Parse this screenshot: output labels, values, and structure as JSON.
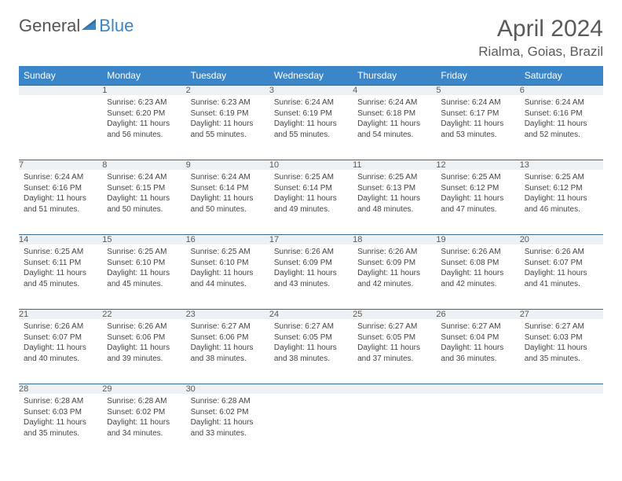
{
  "brand": {
    "part1": "General",
    "part2": "Blue"
  },
  "title": "April 2024",
  "location": "Rialma, Goias, Brazil",
  "colors": {
    "header_bg": "#3a86c8",
    "header_text": "#ffffff",
    "daynum_bg": "#eef1f3",
    "border": "#3a6a8f",
    "title_text": "#5a5a5a",
    "body_text": "#444444",
    "page_bg": "#ffffff"
  },
  "typography": {
    "title_fontsize": 30,
    "location_fontsize": 17,
    "weekday_fontsize": 12,
    "daynum_fontsize": 11,
    "cell_fontsize": 10
  },
  "weekdays": [
    "Sunday",
    "Monday",
    "Tuesday",
    "Wednesday",
    "Thursday",
    "Friday",
    "Saturday"
  ],
  "weeks": [
    [
      null,
      {
        "n": "1",
        "sunrise": "6:23 AM",
        "sunset": "6:20 PM",
        "daylight": "11 hours and 56 minutes."
      },
      {
        "n": "2",
        "sunrise": "6:23 AM",
        "sunset": "6:19 PM",
        "daylight": "11 hours and 55 minutes."
      },
      {
        "n": "3",
        "sunrise": "6:24 AM",
        "sunset": "6:19 PM",
        "daylight": "11 hours and 55 minutes."
      },
      {
        "n": "4",
        "sunrise": "6:24 AM",
        "sunset": "6:18 PM",
        "daylight": "11 hours and 54 minutes."
      },
      {
        "n": "5",
        "sunrise": "6:24 AM",
        "sunset": "6:17 PM",
        "daylight": "11 hours and 53 minutes."
      },
      {
        "n": "6",
        "sunrise": "6:24 AM",
        "sunset": "6:16 PM",
        "daylight": "11 hours and 52 minutes."
      }
    ],
    [
      {
        "n": "7",
        "sunrise": "6:24 AM",
        "sunset": "6:16 PM",
        "daylight": "11 hours and 51 minutes."
      },
      {
        "n": "8",
        "sunrise": "6:24 AM",
        "sunset": "6:15 PM",
        "daylight": "11 hours and 50 minutes."
      },
      {
        "n": "9",
        "sunrise": "6:24 AM",
        "sunset": "6:14 PM",
        "daylight": "11 hours and 50 minutes."
      },
      {
        "n": "10",
        "sunrise": "6:25 AM",
        "sunset": "6:14 PM",
        "daylight": "11 hours and 49 minutes."
      },
      {
        "n": "11",
        "sunrise": "6:25 AM",
        "sunset": "6:13 PM",
        "daylight": "11 hours and 48 minutes."
      },
      {
        "n": "12",
        "sunrise": "6:25 AM",
        "sunset": "6:12 PM",
        "daylight": "11 hours and 47 minutes."
      },
      {
        "n": "13",
        "sunrise": "6:25 AM",
        "sunset": "6:12 PM",
        "daylight": "11 hours and 46 minutes."
      }
    ],
    [
      {
        "n": "14",
        "sunrise": "6:25 AM",
        "sunset": "6:11 PM",
        "daylight": "11 hours and 45 minutes."
      },
      {
        "n": "15",
        "sunrise": "6:25 AM",
        "sunset": "6:10 PM",
        "daylight": "11 hours and 45 minutes."
      },
      {
        "n": "16",
        "sunrise": "6:25 AM",
        "sunset": "6:10 PM",
        "daylight": "11 hours and 44 minutes."
      },
      {
        "n": "17",
        "sunrise": "6:26 AM",
        "sunset": "6:09 PM",
        "daylight": "11 hours and 43 minutes."
      },
      {
        "n": "18",
        "sunrise": "6:26 AM",
        "sunset": "6:09 PM",
        "daylight": "11 hours and 42 minutes."
      },
      {
        "n": "19",
        "sunrise": "6:26 AM",
        "sunset": "6:08 PM",
        "daylight": "11 hours and 42 minutes."
      },
      {
        "n": "20",
        "sunrise": "6:26 AM",
        "sunset": "6:07 PM",
        "daylight": "11 hours and 41 minutes."
      }
    ],
    [
      {
        "n": "21",
        "sunrise": "6:26 AM",
        "sunset": "6:07 PM",
        "daylight": "11 hours and 40 minutes."
      },
      {
        "n": "22",
        "sunrise": "6:26 AM",
        "sunset": "6:06 PM",
        "daylight": "11 hours and 39 minutes."
      },
      {
        "n": "23",
        "sunrise": "6:27 AM",
        "sunset": "6:06 PM",
        "daylight": "11 hours and 38 minutes."
      },
      {
        "n": "24",
        "sunrise": "6:27 AM",
        "sunset": "6:05 PM",
        "daylight": "11 hours and 38 minutes."
      },
      {
        "n": "25",
        "sunrise": "6:27 AM",
        "sunset": "6:05 PM",
        "daylight": "11 hours and 37 minutes."
      },
      {
        "n": "26",
        "sunrise": "6:27 AM",
        "sunset": "6:04 PM",
        "daylight": "11 hours and 36 minutes."
      },
      {
        "n": "27",
        "sunrise": "6:27 AM",
        "sunset": "6:03 PM",
        "daylight": "11 hours and 35 minutes."
      }
    ],
    [
      {
        "n": "28",
        "sunrise": "6:28 AM",
        "sunset": "6:03 PM",
        "daylight": "11 hours and 35 minutes."
      },
      {
        "n": "29",
        "sunrise": "6:28 AM",
        "sunset": "6:02 PM",
        "daylight": "11 hours and 34 minutes."
      },
      {
        "n": "30",
        "sunrise": "6:28 AM",
        "sunset": "6:02 PM",
        "daylight": "11 hours and 33 minutes."
      },
      null,
      null,
      null,
      null
    ]
  ],
  "labels": {
    "sunrise": "Sunrise: ",
    "sunset": "Sunset: ",
    "daylight": "Daylight: "
  }
}
